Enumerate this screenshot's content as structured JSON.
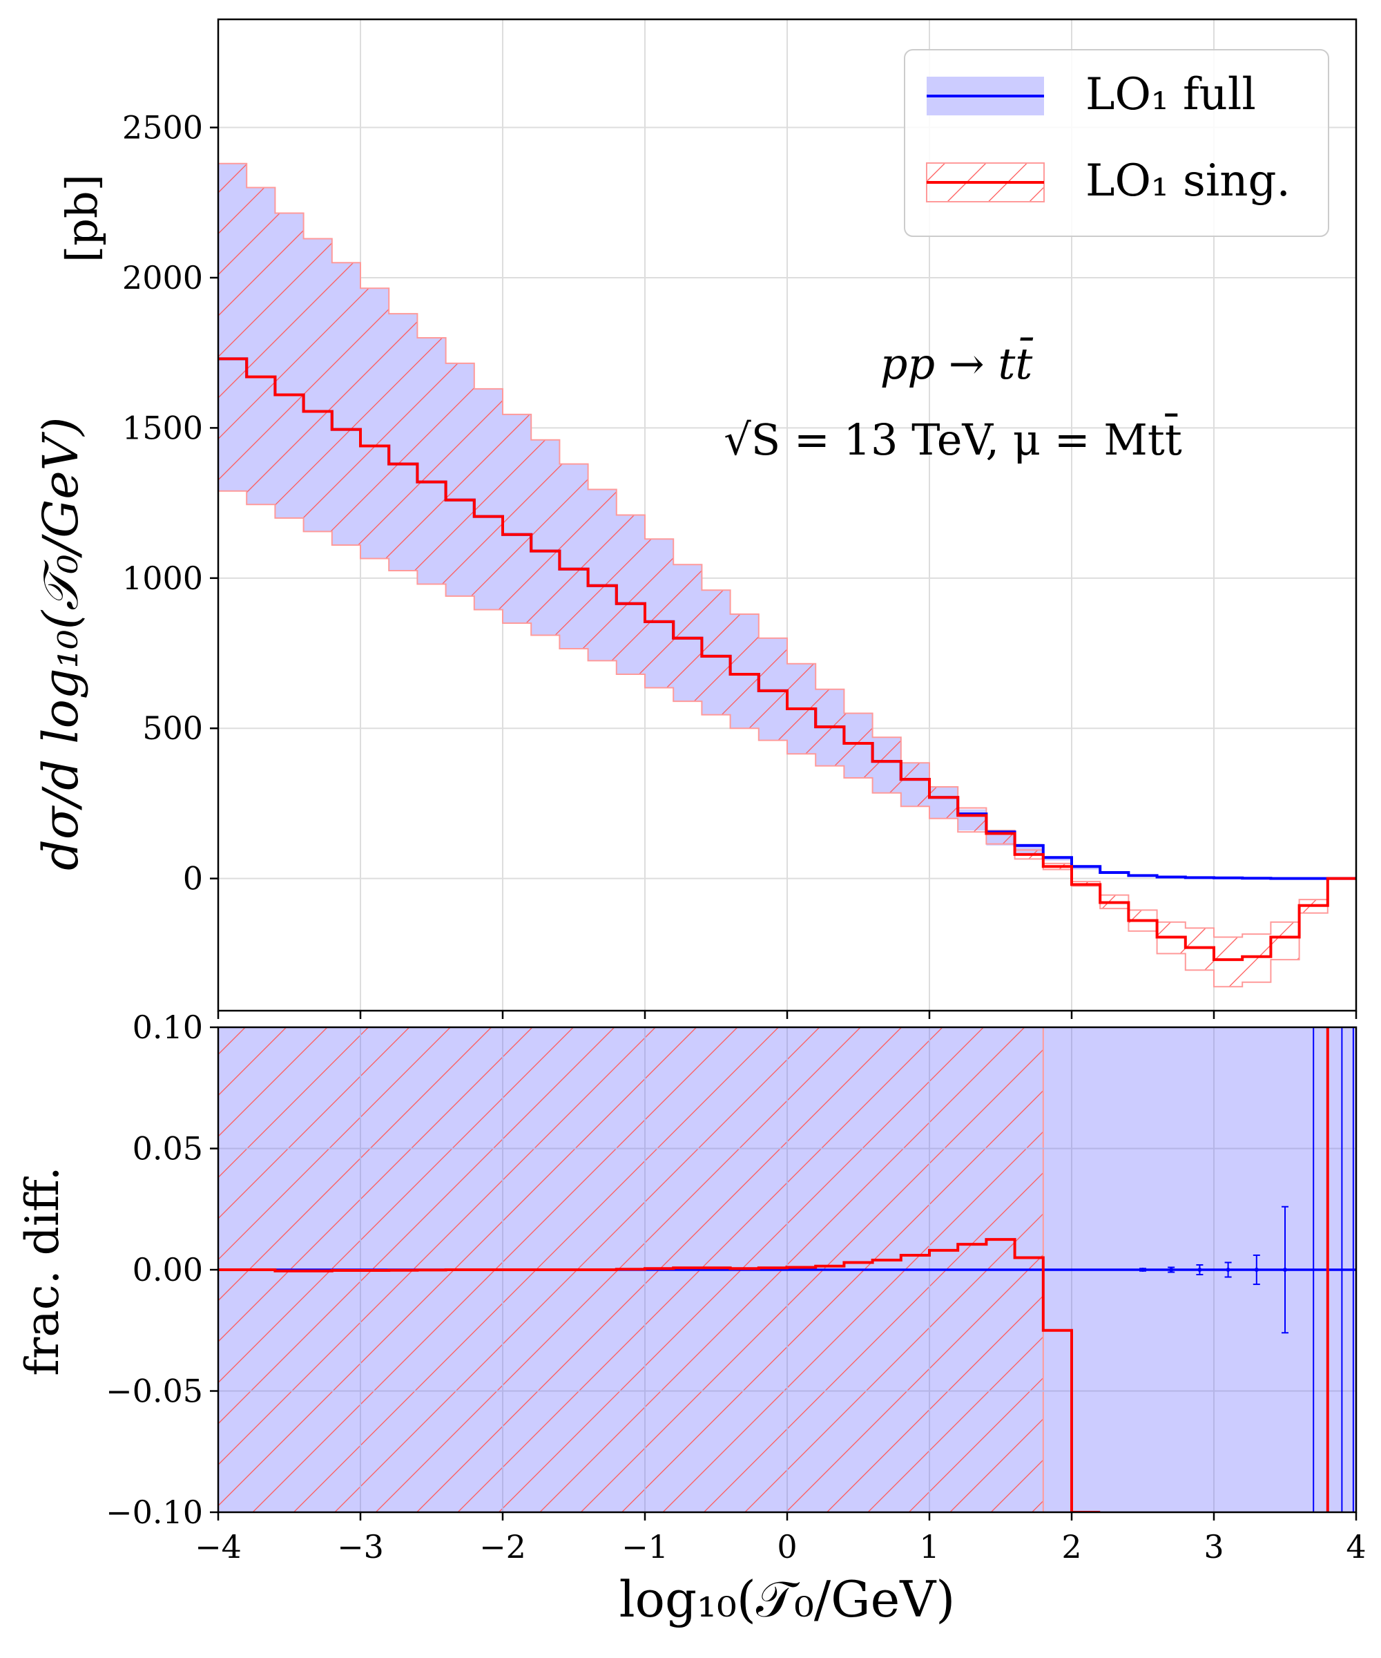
{
  "chart_data": [
    {
      "panel": "main",
      "type": "line",
      "xlim": [
        -4,
        4
      ],
      "ylim": [
        -440,
        2860
      ],
      "xlabel": "",
      "ylabel": "dσ/d log₁₀(𝒯₀/GeV)",
      "ylabel_unit": "[pb]",
      "grid": true,
      "yticks": [
        0,
        500,
        1000,
        1500,
        2000,
        2500
      ],
      "xticks": [
        -4,
        -3,
        -2,
        -1,
        0,
        1,
        2,
        3,
        4
      ],
      "annotation_lines": [
        "pp → tt̄",
        "√S = 13 TeV, μ = Mtt̄"
      ],
      "legend": {
        "placement": "top-right",
        "entries": [
          {
            "label": "LO₁ full",
            "color": "#0000ff",
            "band": "solid"
          },
          {
            "label": "LO₁ sing.",
            "color": "#ff0000",
            "band": "hatched"
          }
        ]
      },
      "bin_width": 0.2,
      "bin_edges_start": -4.0,
      "series": [
        {
          "name": "LO₁ full",
          "color": "#0000ff",
          "band_color": "#ccccff",
          "values": [
            1730,
            1670,
            1610,
            1555,
            1495,
            1440,
            1380,
            1320,
            1260,
            1205,
            1145,
            1090,
            1030,
            975,
            915,
            855,
            800,
            740,
            680,
            625,
            565,
            505,
            450,
            390,
            330,
            270,
            215,
            155,
            110,
            70,
            40,
            20,
            10,
            5,
            3,
            2,
            1,
            0,
            0,
            0
          ],
          "band_lower": [
            1290,
            1245,
            1200,
            1155,
            1110,
            1065,
            1025,
            980,
            940,
            895,
            850,
            810,
            765,
            725,
            680,
            635,
            590,
            545,
            500,
            460,
            415,
            375,
            335,
            285,
            240,
            200,
            160,
            110,
            80,
            60,
            30,
            15,
            8,
            4,
            2,
            1,
            0,
            0,
            0,
            0
          ],
          "band_upper": [
            2380,
            2300,
            2215,
            2130,
            2050,
            1965,
            1880,
            1800,
            1715,
            1630,
            1545,
            1460,
            1380,
            1295,
            1210,
            1130,
            1045,
            960,
            880,
            800,
            715,
            630,
            550,
            470,
            385,
            305,
            230,
            160,
            115,
            75,
            45,
            25,
            12,
            6,
            3,
            2,
            1,
            0,
            0,
            0
          ]
        },
        {
          "name": "LO₁ sing.",
          "color": "#ff0000",
          "values": [
            1730,
            1670,
            1610,
            1555,
            1495,
            1440,
            1380,
            1320,
            1260,
            1205,
            1145,
            1090,
            1030,
            975,
            915,
            855,
            800,
            740,
            680,
            625,
            565,
            505,
            450,
            390,
            330,
            270,
            210,
            150,
            80,
            40,
            -20,
            -80,
            -140,
            -195,
            -230,
            -270,
            -260,
            -195,
            -90,
            0
          ],
          "band_lower": [
            1290,
            1245,
            1200,
            1155,
            1110,
            1065,
            1025,
            980,
            940,
            895,
            850,
            810,
            765,
            725,
            680,
            635,
            590,
            545,
            500,
            460,
            415,
            375,
            335,
            285,
            240,
            200,
            155,
            115,
            65,
            30,
            -25,
            -100,
            -175,
            -250,
            -305,
            -360,
            -345,
            -270,
            -115,
            0
          ],
          "band_upper": [
            2380,
            2300,
            2215,
            2130,
            2050,
            1965,
            1880,
            1800,
            1715,
            1630,
            1545,
            1460,
            1380,
            1295,
            1210,
            1130,
            1045,
            960,
            880,
            800,
            715,
            630,
            550,
            470,
            385,
            305,
            235,
            160,
            95,
            50,
            -10,
            -55,
            -105,
            -145,
            -165,
            -195,
            -185,
            -145,
            -70,
            0
          ]
        }
      ]
    },
    {
      "panel": "ratio",
      "type": "line",
      "xlim": [
        -4,
        4
      ],
      "ylim": [
        -0.1,
        0.1
      ],
      "xlabel": "log₁₀(𝒯₀/GeV)",
      "ylabel": "frac. diff.",
      "grid": true,
      "yticks": [
        -0.1,
        -0.05,
        0.0,
        0.05,
        0.1
      ],
      "ytick_labels": [
        "−0.10",
        "−0.05",
        "0.00",
        "0.05",
        "0.10"
      ],
      "xticks": [
        -4,
        -3,
        -2,
        -1,
        0,
        1,
        2,
        3,
        4
      ],
      "xtick_labels": [
        "−4",
        "−3",
        "−2",
        "−1",
        "0",
        "1",
        "2",
        "3",
        "4"
      ],
      "band_full_x": [
        -4,
        4
      ],
      "band_sing_x": [
        -4,
        1.8
      ],
      "series": [
        {
          "name": "LO₁ sing.",
          "color": "#ff0000",
          "values": [
            0.0,
            0.0,
            -0.0005,
            -0.0005,
            -0.0003,
            -0.0003,
            -0.0002,
            -0.0001,
            0.0,
            0.0,
            0.0,
            0.0,
            0.0,
            0.0,
            0.0002,
            0.0005,
            0.0008,
            0.0008,
            0.0005,
            0.0008,
            0.001,
            0.0015,
            0.003,
            0.004,
            0.006,
            0.008,
            0.0105,
            0.0125,
            0.005,
            -0.025,
            -0.1,
            null,
            null,
            null,
            null,
            null,
            null,
            null,
            null,
            null
          ]
        },
        {
          "name": "LO₁ full",
          "color": "#0000ff",
          "errorbars": [
            {
              "x": 2.5,
              "y": 0.0,
              "err": 0.0005
            },
            {
              "x": 2.7,
              "y": 0.0,
              "err": 0.001
            },
            {
              "x": 2.9,
              "y": 0.0,
              "err": 0.002
            },
            {
              "x": 3.1,
              "y": 0.0,
              "err": 0.003
            },
            {
              "x": 3.3,
              "y": 0.0,
              "err": 0.006
            },
            {
              "x": 3.5,
              "y": 0.0,
              "err": 0.026
            }
          ],
          "vertical_lines_x": [
            3.7,
            3.9,
            3.98
          ]
        }
      ],
      "red_vertical_x": 3.8
    }
  ]
}
